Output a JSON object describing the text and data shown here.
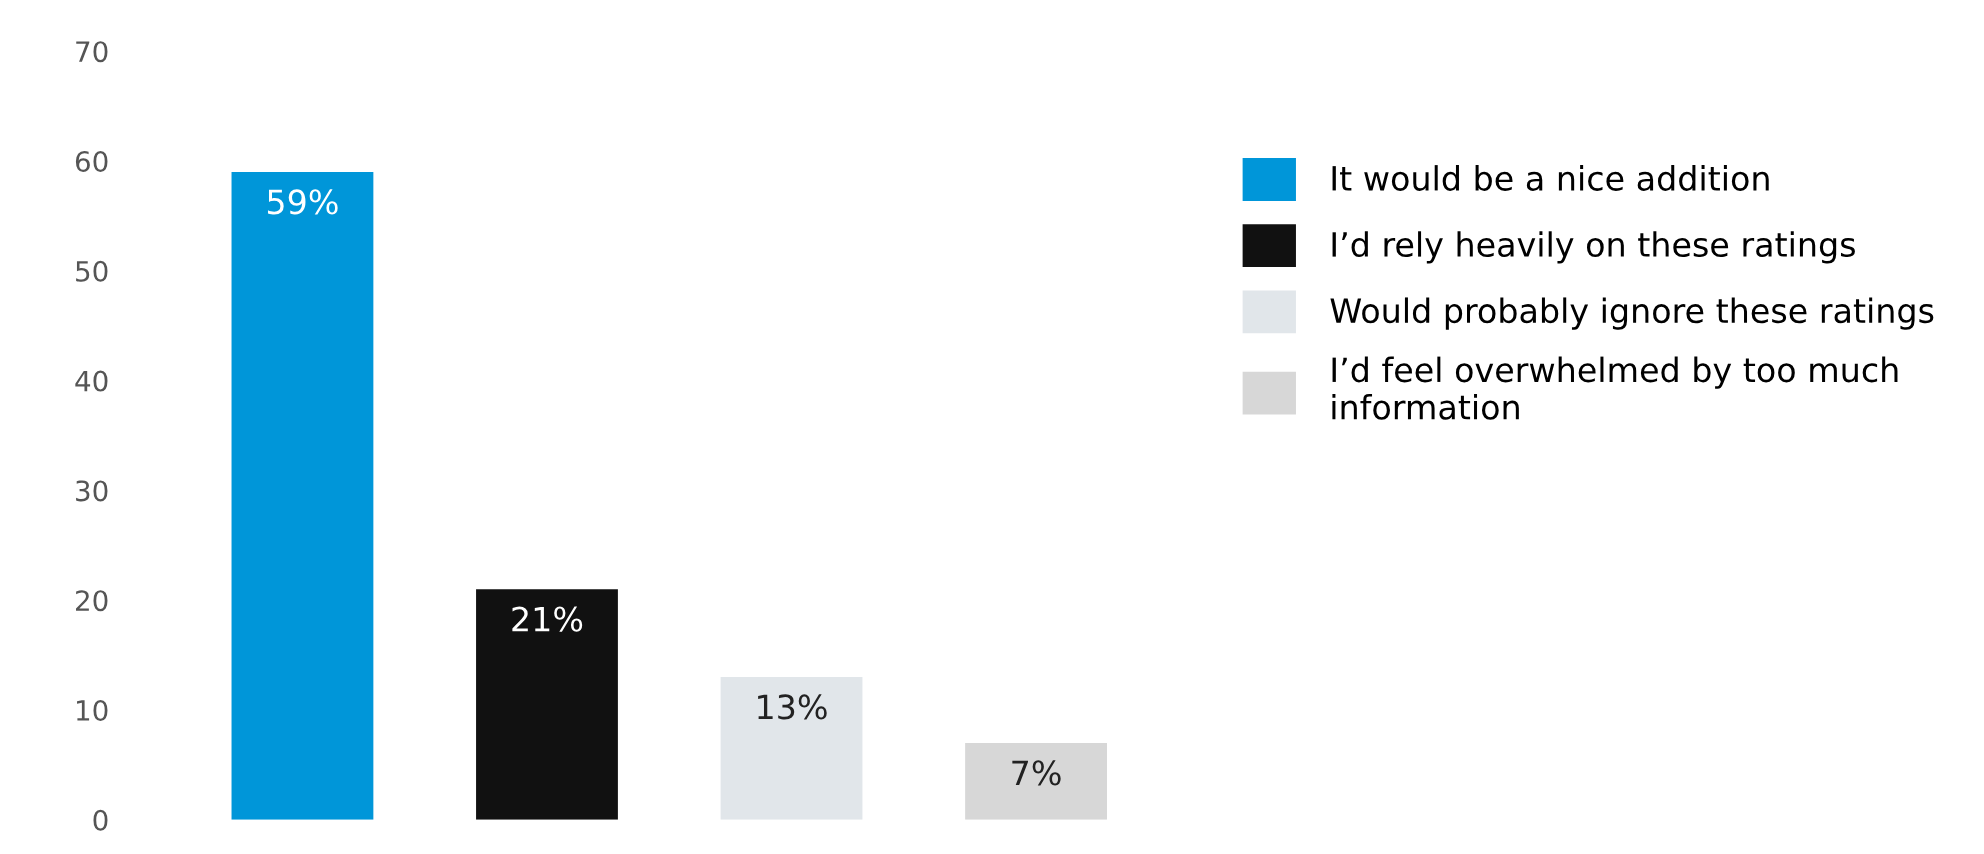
{
  "chart_data": {
    "type": "bar",
    "stacked": true,
    "categories": [
      null,
      null,
      null,
      null
    ],
    "series": [
      {
        "name": "It would be a nice addition",
        "color": "#0096d9",
        "values": [
          59,
          null,
          null,
          null
        ],
        "value_labels": [
          "59%",
          null,
          null,
          null
        ]
      },
      {
        "name": "I’d rely heavily on these ratings",
        "color": "#111111",
        "values": [
          null,
          21,
          null,
          null
        ],
        "value_labels": [
          null,
          "21%",
          null,
          null
        ]
      },
      {
        "name": "Would probably ignore these ratings",
        "color": "#e1e6ea",
        "values": [
          null,
          null,
          13,
          null
        ],
        "value_labels": [
          null,
          null,
          "13%",
          null
        ]
      },
      {
        "name": "I’d feel overwhelmed by too much information",
        "color": "#d7d7d7",
        "values": [
          null,
          null,
          null,
          7
        ],
        "value_labels": [
          null,
          null,
          null,
          "7%"
        ]
      }
    ],
    "ylim": [
      0,
      70
    ],
    "yticks": [
      0,
      10,
      20,
      30,
      40,
      50,
      60,
      70
    ],
    "grid": false,
    "legend": "right"
  }
}
